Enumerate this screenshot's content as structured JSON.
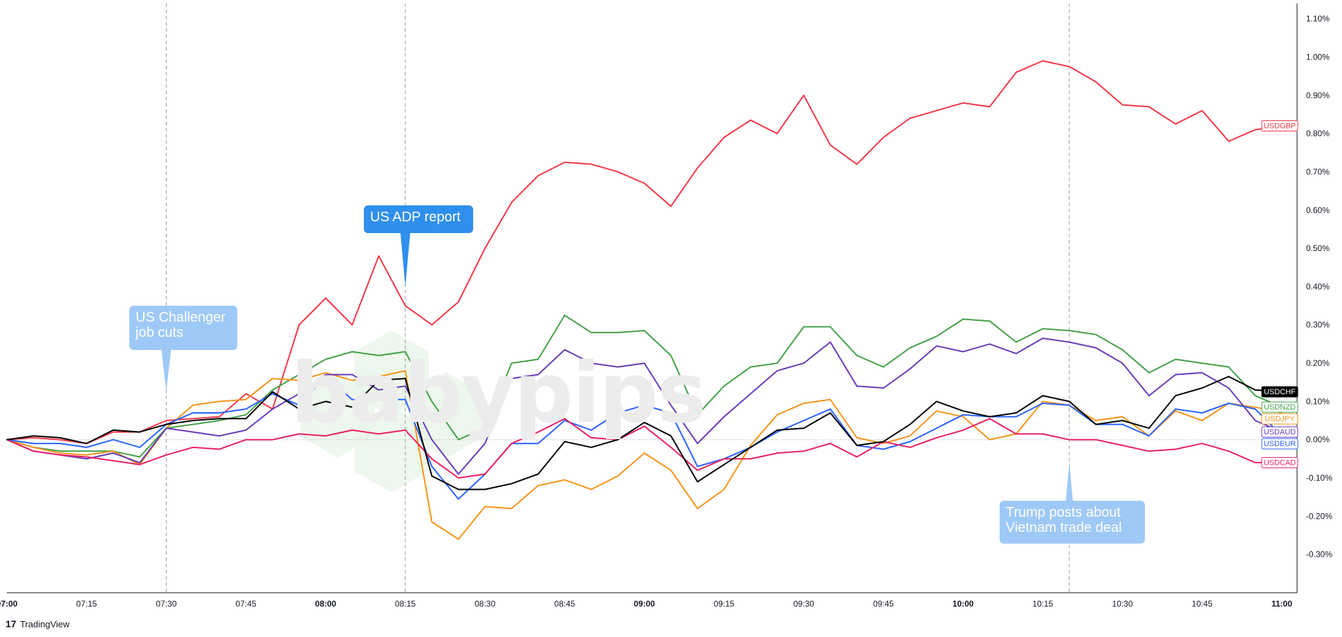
{
  "chart_data": {
    "type": "line",
    "x": [
      "07:00",
      "07:05",
      "07:10",
      "07:15",
      "07:20",
      "07:25",
      "07:30",
      "07:35",
      "07:40",
      "07:45",
      "07:50",
      "07:55",
      "08:00",
      "08:05",
      "08:10",
      "08:15",
      "08:20",
      "08:25",
      "08:30",
      "08:35",
      "08:40",
      "08:45",
      "08:50",
      "08:55",
      "09:00",
      "09:05",
      "09:10",
      "09:15",
      "09:20",
      "09:25",
      "09:30",
      "09:35",
      "09:40",
      "09:45",
      "09:50",
      "09:55",
      "10:00",
      "10:05",
      "10:10",
      "10:15",
      "10:20",
      "10:25",
      "10:30",
      "10:35",
      "10:40",
      "10:45",
      "10:50",
      "10:55",
      "11:00"
    ],
    "x_tick_labels": [
      "07:00",
      "07:15",
      "07:30",
      "07:45",
      "08:00",
      "08:15",
      "08:30",
      "08:45",
      "09:00",
      "09:15",
      "09:30",
      "09:45",
      "10:00",
      "10:15",
      "10:30",
      "10:45",
      "11:00"
    ],
    "bold_ticks": [
      "07:00",
      "08:00",
      "09:00",
      "10:00",
      "11:00"
    ],
    "y_tick_labels": [
      "1.10%",
      "1.00%",
      "0.90%",
      "0.80%",
      "0.70%",
      "0.60%",
      "0.50%",
      "0.40%",
      "0.30%",
      "0.20%",
      "0.10%",
      "0.00%",
      "-0.10%",
      "-0.20%",
      "-0.30%"
    ],
    "ylim": [
      -0.4,
      1.14
    ],
    "y_unit": "%",
    "grid": false,
    "zero_line": true,
    "series": [
      {
        "name": "USDGBP",
        "color": "#f23645",
        "values": [
          0.0,
          0.005,
          0.0,
          -0.01,
          0.02,
          0.02,
          0.05,
          0.055,
          0.06,
          0.12,
          0.08,
          0.3,
          0.37,
          0.3,
          0.48,
          0.35,
          0.3,
          0.36,
          0.5,
          0.62,
          0.69,
          0.725,
          0.72,
          0.7,
          0.67,
          0.61,
          0.71,
          0.79,
          0.835,
          0.8,
          0.9,
          0.77,
          0.72,
          0.79,
          0.84,
          0.86,
          0.88,
          0.87,
          0.96,
          0.99,
          0.975,
          0.935,
          0.875,
          0.87,
          0.825,
          0.86,
          0.78,
          0.81,
          0.82
        ]
      },
      {
        "name": "USDNZD",
        "color": "#43a047",
        "values": [
          0.0,
          -0.02,
          -0.03,
          -0.03,
          -0.03,
          -0.045,
          0.03,
          0.04,
          0.05,
          0.065,
          0.13,
          0.17,
          0.21,
          0.23,
          0.22,
          0.23,
          0.1,
          0.0,
          0.03,
          0.2,
          0.21,
          0.325,
          0.28,
          0.28,
          0.285,
          0.22,
          0.065,
          0.14,
          0.19,
          0.2,
          0.295,
          0.295,
          0.22,
          0.19,
          0.24,
          0.27,
          0.315,
          0.31,
          0.255,
          0.29,
          0.285,
          0.275,
          0.235,
          0.175,
          0.21,
          0.2,
          0.19,
          0.115,
          0.085
        ]
      },
      {
        "name": "USDJPY",
        "color": "#f7931a",
        "values": [
          0.0,
          -0.02,
          -0.035,
          -0.04,
          -0.03,
          -0.065,
          0.03,
          0.09,
          0.1,
          0.105,
          0.16,
          0.155,
          0.175,
          0.155,
          0.165,
          0.18,
          -0.215,
          -0.26,
          -0.175,
          -0.18,
          -0.12,
          -0.105,
          -0.13,
          -0.095,
          -0.035,
          -0.08,
          -0.18,
          -0.13,
          -0.015,
          0.065,
          0.095,
          0.105,
          0.005,
          -0.01,
          0.01,
          0.075,
          0.06,
          0.0,
          0.015,
          0.1,
          0.09,
          0.05,
          0.06,
          0.01,
          0.075,
          0.05,
          0.095,
          0.085,
          0.07
        ]
      },
      {
        "name": "USDAUD",
        "color": "#673ab7",
        "values": [
          0.0,
          -0.03,
          -0.04,
          -0.05,
          -0.035,
          -0.06,
          0.03,
          0.02,
          0.01,
          0.025,
          0.08,
          0.12,
          0.17,
          0.17,
          0.13,
          0.14,
          0.0,
          -0.09,
          -0.01,
          0.16,
          0.17,
          0.235,
          0.2,
          0.19,
          0.2,
          0.09,
          -0.01,
          0.06,
          0.12,
          0.18,
          0.2,
          0.255,
          0.14,
          0.135,
          0.185,
          0.245,
          0.23,
          0.25,
          0.225,
          0.265,
          0.255,
          0.24,
          0.2,
          0.115,
          0.17,
          0.175,
          0.135,
          0.05,
          0.02
        ]
      },
      {
        "name": "USDEUR",
        "color": "#2962ff",
        "values": [
          0.0,
          -0.01,
          -0.01,
          -0.02,
          0.0,
          -0.02,
          0.04,
          0.07,
          0.07,
          0.08,
          0.12,
          0.09,
          0.165,
          0.105,
          0.105,
          0.105,
          -0.07,
          -0.155,
          -0.09,
          -0.01,
          -0.01,
          0.05,
          0.025,
          0.07,
          0.09,
          0.07,
          -0.07,
          -0.05,
          -0.02,
          0.02,
          0.05,
          0.08,
          -0.015,
          -0.025,
          -0.005,
          0.03,
          0.065,
          0.06,
          0.06,
          0.095,
          0.09,
          0.04,
          0.04,
          0.01,
          0.08,
          0.07,
          0.095,
          0.08,
          0.01
        ]
      },
      {
        "name": "USDCAD",
        "color": "#e91e63",
        "values": [
          0.0,
          -0.03,
          -0.04,
          -0.045,
          -0.055,
          -0.065,
          -0.04,
          -0.02,
          -0.025,
          0.0,
          0.0,
          0.015,
          0.01,
          0.025,
          0.015,
          0.025,
          -0.05,
          -0.1,
          -0.09,
          -0.01,
          0.02,
          0.055,
          0.005,
          0.0,
          0.035,
          -0.02,
          -0.08,
          -0.05,
          -0.05,
          -0.035,
          -0.03,
          -0.01,
          -0.045,
          -0.005,
          -0.02,
          0.005,
          0.025,
          0.055,
          0.015,
          0.015,
          0.0,
          0.0,
          -0.015,
          -0.03,
          -0.025,
          -0.01,
          -0.03,
          -0.06,
          -0.06
        ]
      },
      {
        "name": "USDCHF",
        "color": "#000000",
        "values": [
          0.0,
          0.01,
          0.005,
          -0.01,
          0.025,
          0.02,
          0.04,
          0.05,
          0.055,
          0.055,
          0.125,
          0.08,
          0.1,
          0.085,
          0.155,
          0.16,
          -0.095,
          -0.13,
          -0.13,
          -0.115,
          -0.09,
          -0.005,
          -0.02,
          0.0,
          0.045,
          0.01,
          -0.11,
          -0.065,
          -0.02,
          0.025,
          0.03,
          0.07,
          -0.015,
          -0.005,
          0.04,
          0.1,
          0.075,
          0.06,
          0.07,
          0.115,
          0.1,
          0.04,
          0.05,
          0.03,
          0.115,
          0.135,
          0.165,
          0.13,
          0.125
        ]
      }
    ],
    "event_lines": [
      "07:30",
      "08:15",
      "10:20"
    ],
    "annotations": [
      {
        "text": "US Challenger\njob cuts",
        "x": "07:30",
        "style": "light"
      },
      {
        "text": "US ADP report",
        "x": "08:15",
        "style": "dark"
      },
      {
        "text": "Trump posts about\nVietnam trade deal",
        "x": "10:20",
        "style": "light"
      }
    ]
  },
  "watermark": "babypips",
  "branding": {
    "logo": "17",
    "text": "TradingView"
  }
}
